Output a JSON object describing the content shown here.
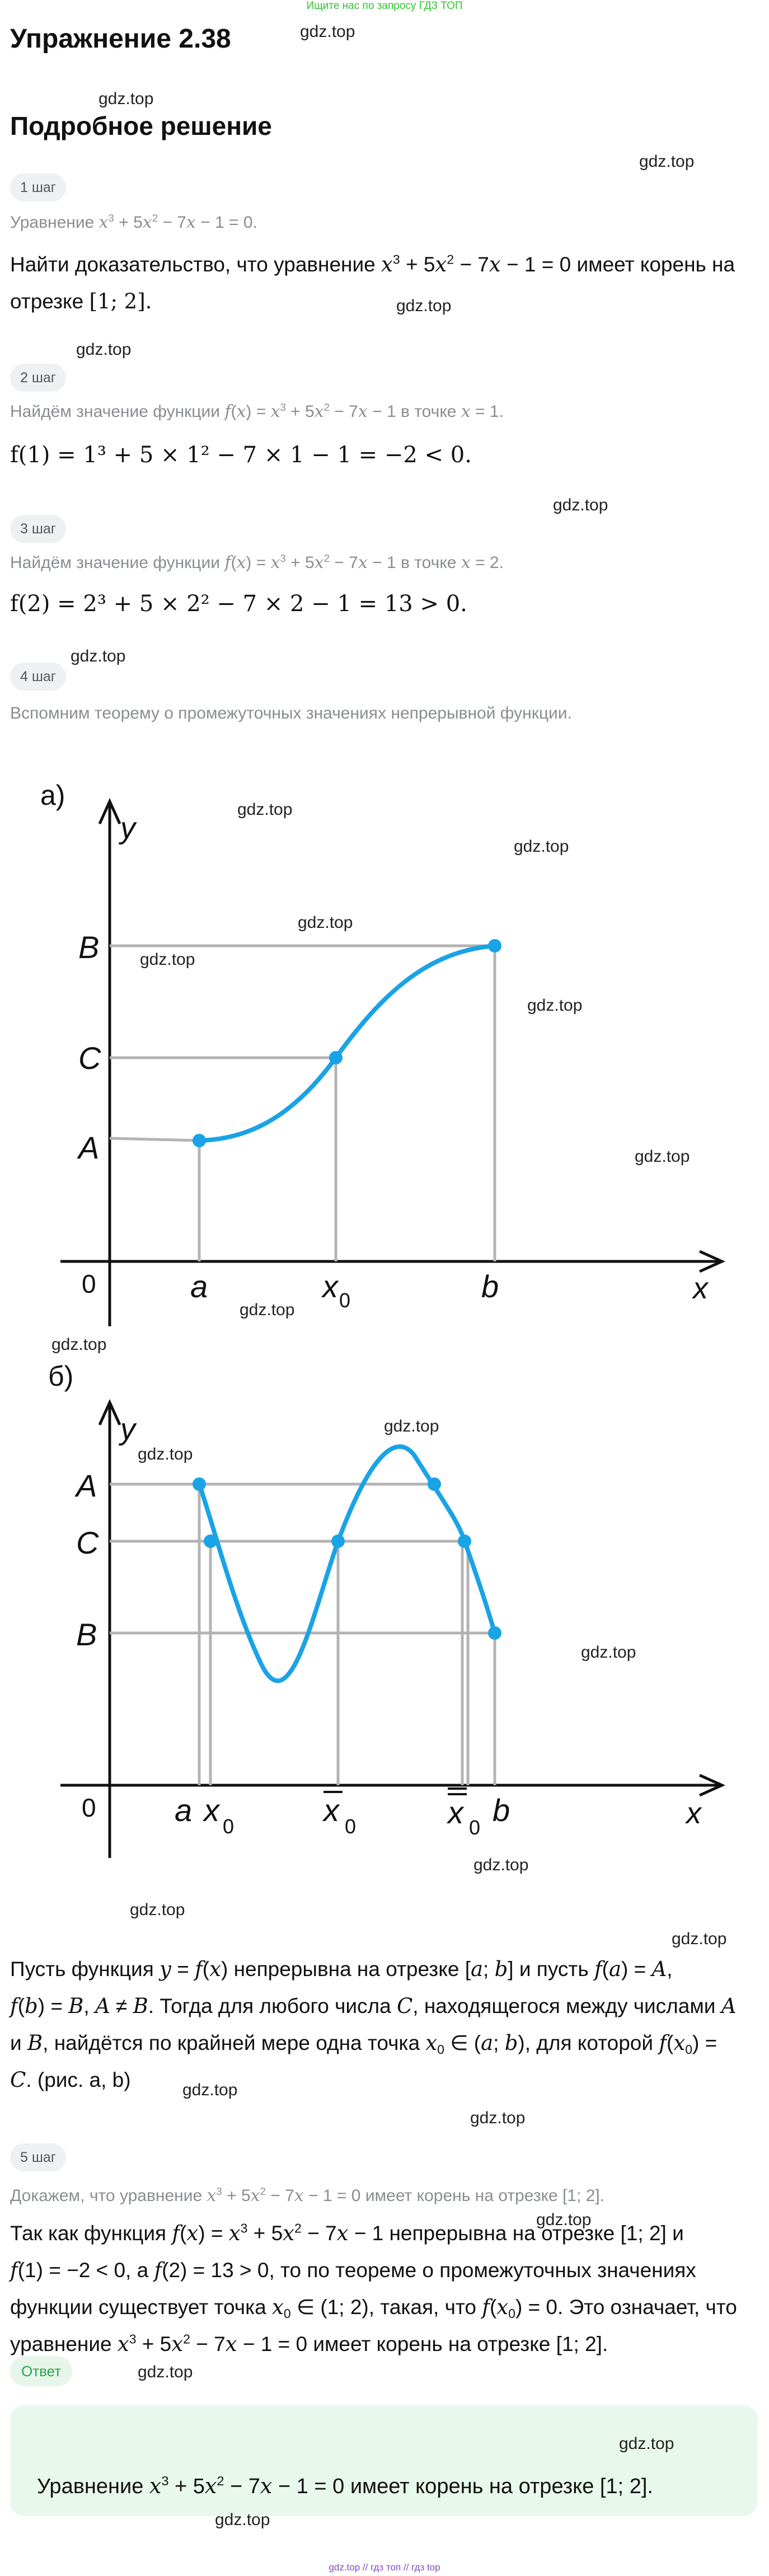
{
  "top_note": "Ищите нас по запросу ГДЗ ТОП",
  "title": "Упражнение 2.38",
  "subtitle": "Подробное решение",
  "watermark": "gdz.top",
  "steps": [
    {
      "label": "1 шаг"
    },
    {
      "label": "2 шаг"
    },
    {
      "label": "3 шаг"
    },
    {
      "label": "4 шаг"
    },
    {
      "label": "5 шаг"
    }
  ],
  "step1": {
    "gray_prefix": "Уравнение",
    "line1_prefix": "Найти доказательство, что уравнение",
    "line1_suffix": "имеет корень на",
    "line2_prefix": "отрезке"
  },
  "step2": {
    "gray_prefix": "Найдём значение функции",
    "gray_mid": "в точке",
    "formula": "f(1) = 1³ + 5 × 1² − 7 × 1 − 1 = −2 < 0."
  },
  "step3": {
    "gray_prefix": "Найдём значение функции",
    "gray_mid": "в точке",
    "formula": "f(2) = 2³ + 5 × 2² − 7 × 2 − 1 = 13 > 0."
  },
  "step4": {
    "gray": "Вспомним теорему о промежуточных значениях непрерывной функции.",
    "graph_a": {
      "panel_label": "а)",
      "y_axis": "y",
      "x_axis": "x",
      "origin": "0",
      "y_labels": [
        "B",
        "C",
        "A"
      ],
      "x_labels": [
        "a",
        "x",
        "b"
      ],
      "x_sub": "0"
    },
    "graph_b": {
      "panel_label": "б)",
      "y_axis": "y",
      "x_axis": "x",
      "origin": "0",
      "y_labels": [
        "A",
        "C",
        "B"
      ],
      "x_labels": [
        "a",
        "x",
        "x",
        "x",
        "b"
      ],
      "x_sub": "0"
    },
    "theorem_line1_a": "Пусть функция",
    "theorem_line1_b": "непрерывна на отрезке",
    "theorem_line1_c": "и пусть",
    "theorem_line2_a": ". Тогда для любого числа",
    "theorem_line2_b": ", находящегося между числами",
    "theorem_line3_a": "и",
    "theorem_line3_b": ", найдётся по крайней мере одна точка",
    "theorem_line3_c": ", для которой",
    "theorem_line4_b": ". (рис. а, b)"
  },
  "step5": {
    "gray_prefix": "Докажем, что уравнение",
    "gray_suffix": "имеет корень на отрезке",
    "p1_a": "Так как функция",
    "p1_b": "непрерывна на отрезке",
    "p1_c": "и",
    "p2_a": ", а",
    "p2_b": ", то по теореме о промежуточных значениях",
    "p3_a": "функции существует точка",
    "p3_b": ", такая, что",
    "p3_c": ". Это означает, что",
    "p4_a": "уравнение",
    "p4_b": "имеет корень на отрезке"
  },
  "answer": {
    "label": "Ответ",
    "prefix": "Уравнение",
    "suffix": "имеет корень на отрезке"
  },
  "footer": "gdz.top // гдз топ // гдз top",
  "colors": {
    "curve": "#1aa3e6",
    "guide": "#b3b3b3",
    "top_note": "#2ec52e",
    "answer_bg": "#e9f8ec",
    "answer_label": "#2aa44a"
  }
}
